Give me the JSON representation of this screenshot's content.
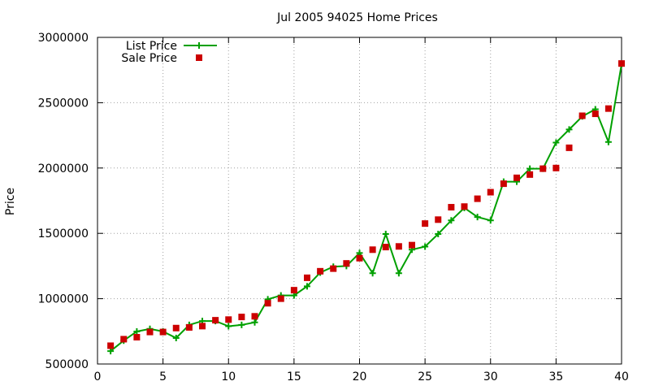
{
  "chart_data": {
    "type": "line",
    "title": "Jul 2005 94025 Home Prices",
    "xlabel": "",
    "ylabel": "Price",
    "xlim": [
      0,
      40
    ],
    "ylim": [
      500000,
      3000000
    ],
    "xticks": [
      0,
      5,
      10,
      15,
      20,
      25,
      30,
      35,
      40
    ],
    "yticks": [
      500000,
      1000000,
      1500000,
      2000000,
      2500000,
      3000000
    ],
    "grid": true,
    "legend_position": "top-left",
    "x": [
      1,
      2,
      3,
      4,
      5,
      6,
      7,
      8,
      9,
      10,
      11,
      12,
      13,
      14,
      15,
      16,
      17,
      18,
      19,
      20,
      21,
      22,
      23,
      24,
      25,
      26,
      27,
      28,
      29,
      30,
      31,
      32,
      33,
      34,
      35,
      36,
      37,
      38,
      39,
      40
    ],
    "series": [
      {
        "name": "List Price",
        "style": "linespoints",
        "color": "#00a000",
        "values": [
          599000,
          679000,
          749000,
          769000,
          749000,
          699000,
          799000,
          829000,
          829000,
          789000,
          799000,
          819000,
          995000,
          1025000,
          1025000,
          1095000,
          1200000,
          1245000,
          1250000,
          1350000,
          1195000,
          1495000,
          1195000,
          1375000,
          1399000,
          1495000,
          1599000,
          1695000,
          1625000,
          1599000,
          1895000,
          1895000,
          1995000,
          1995000,
          2195000,
          2295000,
          2395000,
          2450000,
          2199000,
          2795000
        ]
      },
      {
        "name": "Sale Price",
        "style": "points",
        "color": "#cc0000",
        "values": [
          640000,
          690000,
          705000,
          745000,
          745000,
          775000,
          780000,
          790000,
          835000,
          840000,
          860000,
          865000,
          965000,
          1000000,
          1065000,
          1160000,
          1210000,
          1230000,
          1270000,
          1310000,
          1375000,
          1395000,
          1400000,
          1410000,
          1575000,
          1605000,
          1700000,
          1705000,
          1765000,
          1815000,
          1880000,
          1925000,
          1950000,
          1995000,
          2000000,
          2155000,
          2400000,
          2415000,
          2455000,
          2800000
        ]
      }
    ]
  }
}
